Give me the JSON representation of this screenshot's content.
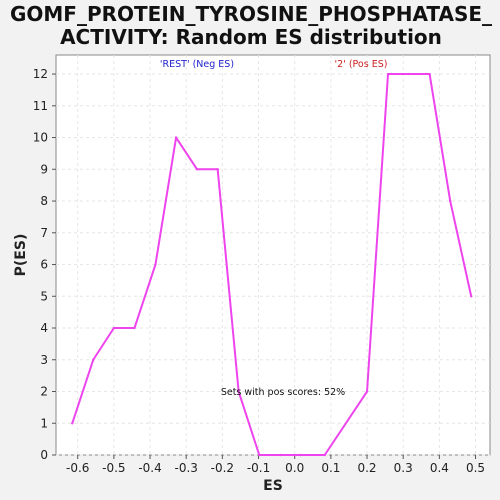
{
  "chart_data": {
    "type": "line",
    "title_lines": [
      "GOMF_PROTEIN_TYROSINE_PHOSPHATASE_",
      "ACTIVITY: Random ES distribution"
    ],
    "xlabel": "ES",
    "ylabel": "P(ES)",
    "xlim": [
      -0.66,
      0.54
    ],
    "ylim": [
      0,
      12.6
    ],
    "x_ticks": [
      "-0.6",
      "-0.5",
      "-0.4",
      "-0.3",
      "-0.2",
      "-0.1",
      "0.0",
      "0.1",
      "0.2",
      "0.3",
      "0.4",
      "0.5"
    ],
    "x_tick_values": [
      -0.6,
      -0.5,
      -0.4,
      -0.3,
      -0.2,
      -0.1,
      0.0,
      0.1,
      0.2,
      0.3,
      0.4,
      0.5
    ],
    "y_ticks": [
      "0",
      "1",
      "2",
      "3",
      "4",
      "5",
      "6",
      "7",
      "8",
      "9",
      "10",
      "11",
      "12"
    ],
    "y_tick_values": [
      0,
      1,
      2,
      3,
      4,
      5,
      6,
      7,
      8,
      9,
      10,
      11,
      12
    ],
    "grid": true,
    "series": [
      {
        "color": "#ee44ee",
        "x": [
          -0.615,
          -0.557,
          -0.5,
          -0.443,
          -0.385,
          -0.328,
          -0.27,
          -0.213,
          -0.155,
          -0.098,
          -0.04,
          0.017,
          0.083,
          0.2,
          0.258,
          0.315,
          0.373,
          0.43,
          0.488
        ],
        "y": [
          1,
          3,
          4,
          4,
          6,
          10,
          9,
          9,
          2,
          0,
          0,
          0,
          0,
          2,
          12,
          12,
          12,
          8,
          5
        ]
      }
    ],
    "annotations": {
      "neg_label": "'REST' (Neg ES)",
      "neg_color": "#2222cc",
      "pos_label": "'2' (Pos ES)",
      "pos_color": "#cc2222",
      "pos_scores": "Sets with pos scores: 52%"
    }
  }
}
